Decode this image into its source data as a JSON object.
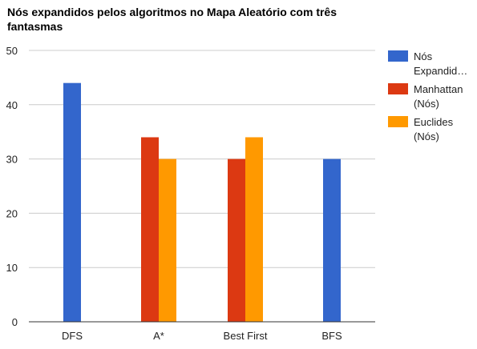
{
  "chart_data": {
    "type": "bar",
    "title": "Nós expandidos pelos algoritmos no Mapa Aleatório com três fantasmas",
    "xlabel": "",
    "ylabel": "",
    "categories": [
      "DFS",
      "A*",
      "Best First",
      "BFS"
    ],
    "series": [
      {
        "name": "Nós Expandid…",
        "color": "#3366cc",
        "values": [
          44,
          null,
          null,
          30
        ]
      },
      {
        "name": "Manhattan (Nós)",
        "color": "#dc3912",
        "values": [
          null,
          34,
          30,
          null
        ]
      },
      {
        "name": "Euclides (Nós)",
        "color": "#ff9900",
        "values": [
          null,
          30,
          34,
          null
        ]
      }
    ],
    "ylim": [
      0,
      50
    ],
    "yticks": [
      0,
      10,
      20,
      30,
      40,
      50
    ],
    "grid": true,
    "legend_position": "right"
  }
}
